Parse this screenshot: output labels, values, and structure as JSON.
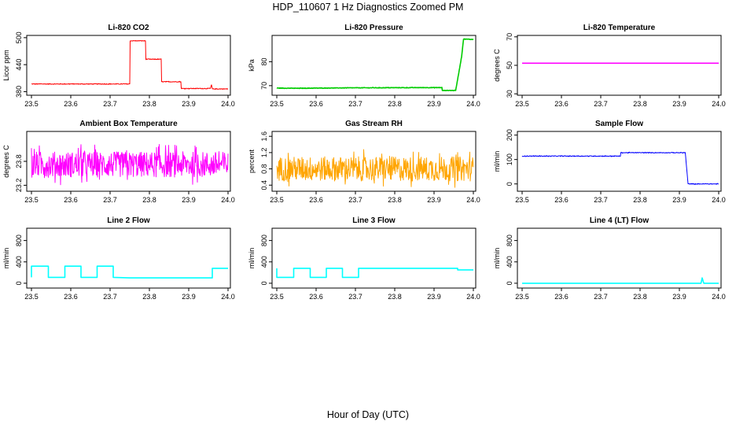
{
  "figure": {
    "title": "HDP_110607  1 Hz Diagnostics Zoomed PM",
    "xlabel": "Hour of Day (UTC)"
  },
  "chart_data": [
    {
      "type": "line",
      "title": "Li-820 CO2",
      "ylabel": "Licor ppm",
      "color": "#ff0000",
      "xlim": [
        23.48,
        24.01
      ],
      "ylim": [
        372,
        505
      ],
      "xticks": [
        "23.5",
        "23.6",
        "23.7",
        "23.8",
        "23.9",
        "24.0"
      ],
      "yticks": [
        "380",
        "440",
        "500"
      ],
      "noise": 0.8,
      "segments": [
        [
          23.5,
          397
        ],
        [
          23.75,
          397
        ],
        [
          23.75,
          493
        ],
        [
          23.79,
          493
        ],
        [
          23.79,
          452
        ],
        [
          23.83,
          452
        ],
        [
          23.83,
          402
        ],
        [
          23.88,
          402
        ],
        [
          23.88,
          387
        ],
        [
          23.955,
          387
        ],
        [
          23.958,
          395
        ],
        [
          23.96,
          386
        ],
        [
          24.0,
          386
        ]
      ]
    },
    {
      "type": "line",
      "title": "Li-820 Pressure",
      "ylabel": "kPa",
      "color": "#00cc00",
      "xlim": [
        23.48,
        24.01
      ],
      "ylim": [
        66,
        91
      ],
      "xticks": [
        "23.5",
        "23.6",
        "23.7",
        "23.8",
        "23.9",
        "24.0"
      ],
      "yticks": [
        "70",
        "80"
      ],
      "noise": 0.1,
      "segments": [
        [
          23.5,
          69.0
        ],
        [
          23.55,
          68.9
        ],
        [
          23.62,
          69.0
        ],
        [
          23.7,
          69.1
        ],
        [
          23.92,
          69.2
        ],
        [
          23.92,
          68.0
        ],
        [
          23.955,
          68.0
        ],
        [
          23.97,
          82
        ],
        [
          23.975,
          89.5
        ],
        [
          24.0,
          89.3
        ]
      ]
    },
    {
      "type": "line",
      "title": "Li-820 Temperature",
      "ylabel": "degrees C",
      "color": "#ff00ff",
      "xlim": [
        23.48,
        24.01
      ],
      "ylim": [
        29,
        71
      ],
      "xticks": [
        "23.5",
        "23.6",
        "23.7",
        "23.8",
        "23.9",
        "24.0"
      ],
      "yticks": [
        "30",
        "50",
        "70"
      ],
      "noise": 0,
      "segments": [
        [
          23.5,
          51.5
        ],
        [
          24.0,
          51.5
        ]
      ]
    },
    {
      "type": "line",
      "title": "Ambient Box Temperature",
      "ylabel": "degrees C",
      "color": "#ff00ff",
      "xlim": [
        23.48,
        24.01
      ],
      "ylim": [
        23.05,
        24.55
      ],
      "xticks": [
        "23.5",
        "23.6",
        "23.7",
        "23.8",
        "23.9",
        "24.0"
      ],
      "yticks": [
        "23.2",
        "23.8"
      ],
      "noise": 0.32,
      "segments": [
        [
          23.5,
          23.72
        ],
        [
          24.0,
          23.72
        ]
      ]
    },
    {
      "type": "line",
      "title": "Gas Stream RH",
      "ylabel": "percent",
      "color": "#ffa500",
      "xlim": [
        23.48,
        24.01
      ],
      "ylim": [
        0.25,
        1.72
      ],
      "xticks": [
        "23.5",
        "23.6",
        "23.7",
        "23.8",
        "23.9",
        "24.0"
      ],
      "yticks": [
        "0.4",
        "0.8",
        "1.2",
        "1.6"
      ],
      "noise": 0.3,
      "segments": [
        [
          23.5,
          0.8
        ],
        [
          24.0,
          0.8
        ]
      ]
    },
    {
      "type": "line",
      "title": "Sample Flow",
      "ylabel": "ml/min",
      "color": "#0000ff",
      "xlim": [
        23.48,
        24.01
      ],
      "ylim": [
        -30,
        215
      ],
      "xticks": [
        "23.5",
        "23.6",
        "23.7",
        "23.8",
        "23.9",
        "24.0"
      ],
      "yticks": [
        "0",
        "100",
        "200"
      ],
      "noise": 1.5,
      "segments": [
        [
          23.5,
          114
        ],
        [
          23.75,
          114
        ],
        [
          23.75,
          128
        ],
        [
          23.915,
          128
        ],
        [
          23.922,
          0
        ],
        [
          24.0,
          0
        ]
      ]
    },
    {
      "type": "line",
      "title": "Line 2 Flow",
      "ylabel": "ml/min",
      "color": "#00ffff",
      "xlim": [
        23.48,
        24.01
      ],
      "ylim": [
        -90,
        1030
      ],
      "xticks": [
        "23.5",
        "23.6",
        "23.7",
        "23.8",
        "23.9",
        "24.0"
      ],
      "yticks": [
        "0",
        "400",
        "800"
      ],
      "noise": 0,
      "segments": [
        [
          23.5,
          110
        ],
        [
          23.5,
          320
        ],
        [
          23.543,
          320
        ],
        [
          23.543,
          110
        ],
        [
          23.585,
          110
        ],
        [
          23.585,
          320
        ],
        [
          23.626,
          320
        ],
        [
          23.626,
          110
        ],
        [
          23.667,
          110
        ],
        [
          23.667,
          320
        ],
        [
          23.708,
          320
        ],
        [
          23.708,
          110
        ],
        [
          23.75,
          100
        ],
        [
          23.96,
          100
        ],
        [
          23.96,
          280
        ],
        [
          24.0,
          280
        ]
      ]
    },
    {
      "type": "line",
      "title": "Line 3 Flow",
      "ylabel": "ml/min",
      "color": "#00ffff",
      "xlim": [
        23.48,
        24.01
      ],
      "ylim": [
        -90,
        1030
      ],
      "xticks": [
        "23.5",
        "23.6",
        "23.7",
        "23.8",
        "23.9",
        "24.0"
      ],
      "yticks": [
        "0",
        "400",
        "800"
      ],
      "noise": 0,
      "segments": [
        [
          23.5,
          280
        ],
        [
          23.5,
          110
        ],
        [
          23.543,
          110
        ],
        [
          23.543,
          280
        ],
        [
          23.585,
          280
        ],
        [
          23.585,
          110
        ],
        [
          23.626,
          110
        ],
        [
          23.626,
          280
        ],
        [
          23.667,
          280
        ],
        [
          23.667,
          110
        ],
        [
          23.708,
          110
        ],
        [
          23.708,
          280
        ],
        [
          23.96,
          280
        ],
        [
          23.96,
          250
        ],
        [
          24.0,
          250
        ]
      ]
    },
    {
      "type": "line",
      "title": "Line 4 (LT) Flow",
      "ylabel": "ml/min",
      "color": "#00ffff",
      "xlim": [
        23.48,
        24.01
      ],
      "ylim": [
        -90,
        1030
      ],
      "xticks": [
        "23.5",
        "23.6",
        "23.7",
        "23.8",
        "23.9",
        "24.0"
      ],
      "yticks": [
        "0",
        "400",
        "800"
      ],
      "noise": 0,
      "segments": [
        [
          23.5,
          0
        ],
        [
          23.955,
          0
        ],
        [
          23.958,
          100
        ],
        [
          23.962,
          0
        ],
        [
          24.0,
          0
        ]
      ]
    }
  ]
}
